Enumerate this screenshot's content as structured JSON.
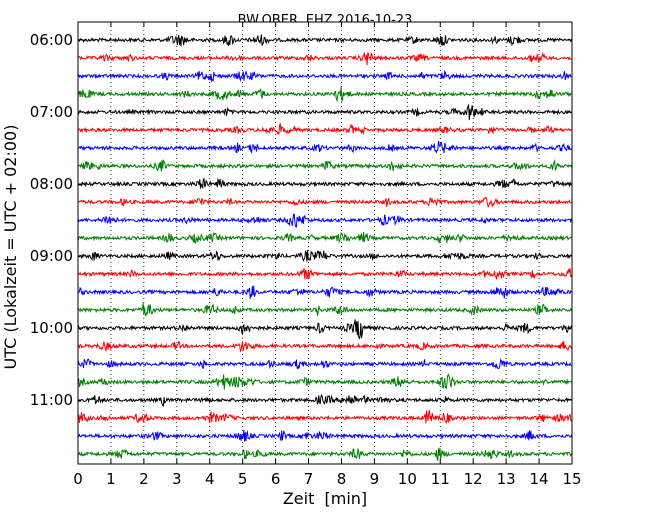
{
  "chart_data": {
    "type": "line",
    "title": "BW.OBER..EHZ 2016-10-23",
    "xlabel": "Zeit  [min]",
    "ylabel": "UTC (Lokalzeit = UTC + 02:00)",
    "xlim": [
      0,
      15
    ],
    "x_ticks": [
      0,
      1,
      2,
      3,
      4,
      5,
      6,
      7,
      8,
      9,
      10,
      11,
      12,
      13,
      14,
      15
    ],
    "y_tick_labels": [
      "06:00",
      "07:00",
      "08:00",
      "09:00",
      "10:00",
      "11:00"
    ],
    "traces_per_hour": 4,
    "trace_start_times": [
      "06:00",
      "06:15",
      "06:30",
      "06:45",
      "07:00",
      "07:15",
      "07:30",
      "07:45",
      "08:00",
      "08:15",
      "08:30",
      "08:45",
      "09:00",
      "09:15",
      "09:30",
      "09:45",
      "10:00",
      "10:15",
      "10:30",
      "10:45",
      "11:00",
      "11:15",
      "11:30",
      "11:45"
    ],
    "trace_colors": [
      "#000000",
      "#ff0000",
      "#0000ff",
      "#008000"
    ],
    "grid": "vertical dotted lines at each minute",
    "legend": "none"
  }
}
